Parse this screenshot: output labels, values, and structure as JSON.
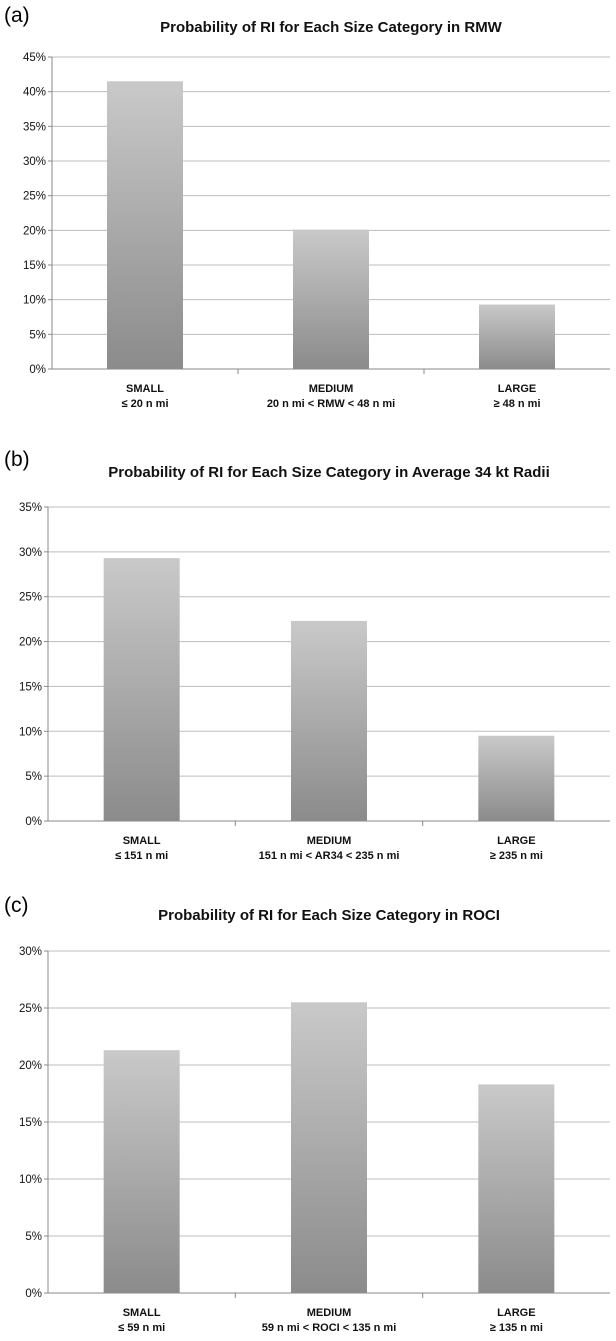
{
  "chart_data": [
    {
      "panel": "(a)",
      "type": "bar",
      "title": "Probability of RI for Each Size Category in RMW",
      "categories": [
        "SMALL",
        "MEDIUM",
        "LARGE"
      ],
      "category_sublabels": [
        "≤ 20 n mi",
        "20 n mi < RMW < 48 n mi",
        "≥ 48 n mi"
      ],
      "values": [
        41.5,
        20.1,
        9.3
      ],
      "ylim": [
        0,
        45
      ],
      "yticks": [
        0,
        5,
        10,
        15,
        20,
        25,
        30,
        35,
        40,
        45
      ],
      "ytick_labels": [
        "0%",
        "5%",
        "10%",
        "15%",
        "20%",
        "25%",
        "30%",
        "35%",
        "40%",
        "45%"
      ],
      "grid": true
    },
    {
      "panel": "(b)",
      "type": "bar",
      "title": "Probability of RI for Each Size Category in Average 34 kt Radii",
      "categories": [
        "SMALL",
        "MEDIUM",
        "LARGE"
      ],
      "category_sublabels": [
        "≤ 151 n mi",
        "151 n mi < AR34 < 235 n mi",
        "≥ 235 n mi"
      ],
      "values": [
        29.3,
        22.3,
        9.5
      ],
      "ylim": [
        0,
        35
      ],
      "yticks": [
        0,
        5,
        10,
        15,
        20,
        25,
        30,
        35
      ],
      "ytick_labels": [
        "0%",
        "5%",
        "10%",
        "15%",
        "20%",
        "25%",
        "30%",
        "35%"
      ],
      "grid": true
    },
    {
      "panel": "(c)",
      "type": "bar",
      "title": "Probability of RI for Each Size Category in ROCI",
      "categories": [
        "SMALL",
        "MEDIUM",
        "LARGE"
      ],
      "category_sublabels": [
        "≤ 59 n mi",
        "59 n mi < ROCI < 135 n mi",
        "≥ 135 n mi"
      ],
      "values": [
        21.3,
        25.5,
        18.3
      ],
      "ylim": [
        0,
        30
      ],
      "yticks": [
        0,
        5,
        10,
        15,
        20,
        25,
        30
      ],
      "ytick_labels": [
        "0%",
        "5%",
        "10%",
        "15%",
        "20%",
        "25%",
        "30%"
      ],
      "grid": true
    }
  ],
  "colors": {
    "bar_top": "#c9c9c9",
    "bar_bottom": "#8b8b8b"
  }
}
